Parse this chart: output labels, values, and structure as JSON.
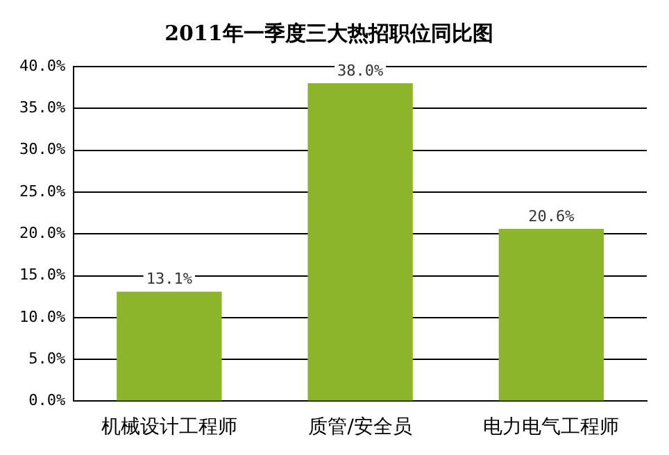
{
  "chart_data": {
    "type": "bar",
    "title": "2011年一季度三大热招职位同比图",
    "categories": [
      "机械设计工程师",
      "质管/安全员",
      "电力电气工程师"
    ],
    "values": [
      13.1,
      38.0,
      20.6
    ],
    "value_labels": [
      "13.1%",
      "38.0%",
      "20.6%"
    ],
    "color": "#8db52c",
    "ylim": [
      0,
      40
    ],
    "yticks": [
      {
        "value": 0,
        "label": "0.0%"
      },
      {
        "value": 5,
        "label": "5.0%"
      },
      {
        "value": 10,
        "label": "10.0%"
      },
      {
        "value": 15,
        "label": "15.0%"
      },
      {
        "value": 20,
        "label": "20.0%"
      },
      {
        "value": 25,
        "label": "25.0%"
      },
      {
        "value": 30,
        "label": "30.0%"
      },
      {
        "value": 35,
        "label": "35.0%"
      },
      {
        "value": 40,
        "label": "40.0%"
      }
    ],
    "grid": "y",
    "legend": false
  }
}
